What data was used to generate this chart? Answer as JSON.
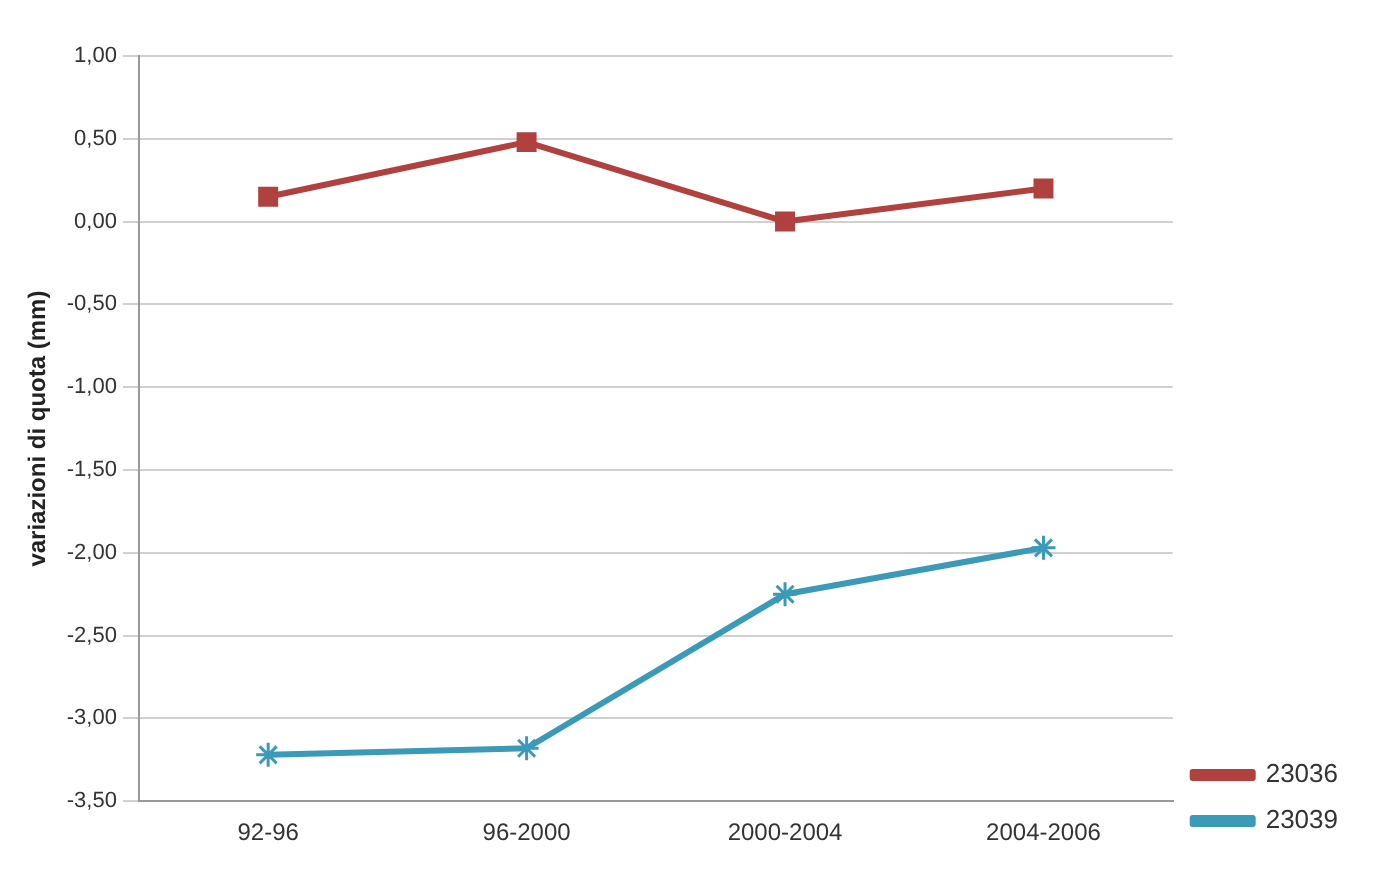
{
  "chart_data": {
    "type": "line",
    "ylabel": "variazioni di quota (mm)",
    "categories": [
      "92-96",
      "96-2000",
      "2000-2004",
      "2004-2006"
    ],
    "series": [
      {
        "name": "23036",
        "color": "#b0413e",
        "values": [
          0.15,
          0.48,
          0.0,
          0.2
        ],
        "marker": "square"
      },
      {
        "name": "23039",
        "color": "#3b9ab8",
        "values": [
          -3.22,
          -3.18,
          -2.25,
          -1.97
        ],
        "marker": "cross"
      }
    ],
    "ylim": [
      -3.5,
      1.0
    ],
    "yticks": [
      {
        "value": -3.5,
        "label": "-3,50"
      },
      {
        "value": -3.0,
        "label": "-3,00"
      },
      {
        "value": -2.5,
        "label": "-2,50"
      },
      {
        "value": -2.0,
        "label": "-2,00"
      },
      {
        "value": -1.5,
        "label": "-1,50"
      },
      {
        "value": -1.0,
        "label": "-1,00"
      },
      {
        "value": -0.5,
        "label": "-0,50"
      },
      {
        "value": 0.0,
        "label": "0,00"
      },
      {
        "value": 0.5,
        "label": "0,50"
      },
      {
        "value": 1.0,
        "label": "1,00"
      }
    ],
    "grid": "y",
    "legend": "right"
  }
}
